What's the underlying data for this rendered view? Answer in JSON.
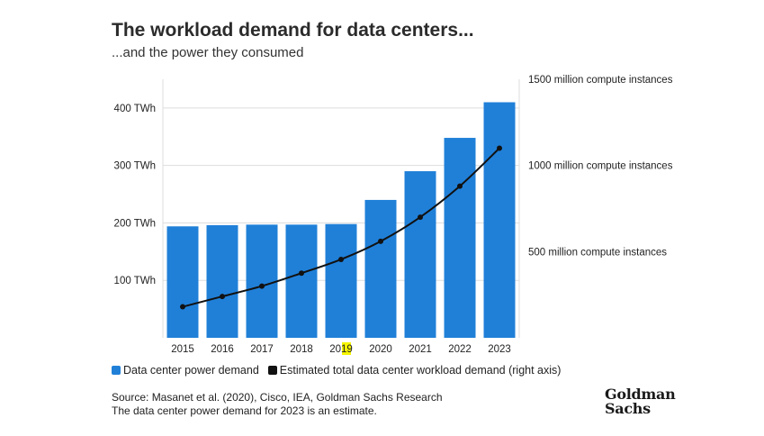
{
  "header": {
    "title": "The workload demand for data centers...",
    "subtitle": "...and the power they consumed"
  },
  "chart_data": {
    "type": "bar+line",
    "categories": [
      "2015",
      "2016",
      "2017",
      "2018",
      "2019",
      "2020",
      "2021",
      "2022",
      "2023"
    ],
    "series": [
      {
        "name": "Data center power demand",
        "type": "bar",
        "axis": "left",
        "values": [
          194,
          196,
          197,
          197,
          198,
          240,
          290,
          348,
          410
        ]
      },
      {
        "name": "Estimated total data center workload demand (right axis)",
        "type": "line",
        "axis": "right",
        "values": [
          180,
          240,
          300,
          375,
          455,
          560,
          700,
          880,
          1100
        ]
      }
    ],
    "left_axis": {
      "ticks": [
        "100 TWh",
        "200 TWh",
        "300 TWh",
        "400 TWh"
      ],
      "tick_values": [
        100,
        200,
        300,
        400
      ],
      "range": [
        0,
        450
      ]
    },
    "right_axis": {
      "ticks": [
        "500 million compute instances",
        "1000 million compute instances",
        "1500 million compute instances"
      ],
      "tick_values": [
        500,
        1000,
        1500
      ],
      "range": [
        0,
        1500
      ]
    },
    "grid": true,
    "legend_position": "bottom-left",
    "colors": {
      "bars": "#2080d8",
      "line": "#111111",
      "grid": "#dddddd",
      "highlight": "#f5f500"
    },
    "highlighted_tick": "2019"
  },
  "legend": {
    "items": [
      {
        "label": "Data center power demand",
        "color": "#2080d8"
      },
      {
        "label": "Estimated total data center workload demand (right axis)",
        "color": "#111111"
      }
    ]
  },
  "footer": {
    "source": "Source: Masanet et al. (2020), Cisco, IEA, Goldman Sachs Research",
    "note": "The data center power demand for 2023 is an estimate.",
    "logo_line1": "Goldman",
    "logo_line2": "Sachs"
  }
}
